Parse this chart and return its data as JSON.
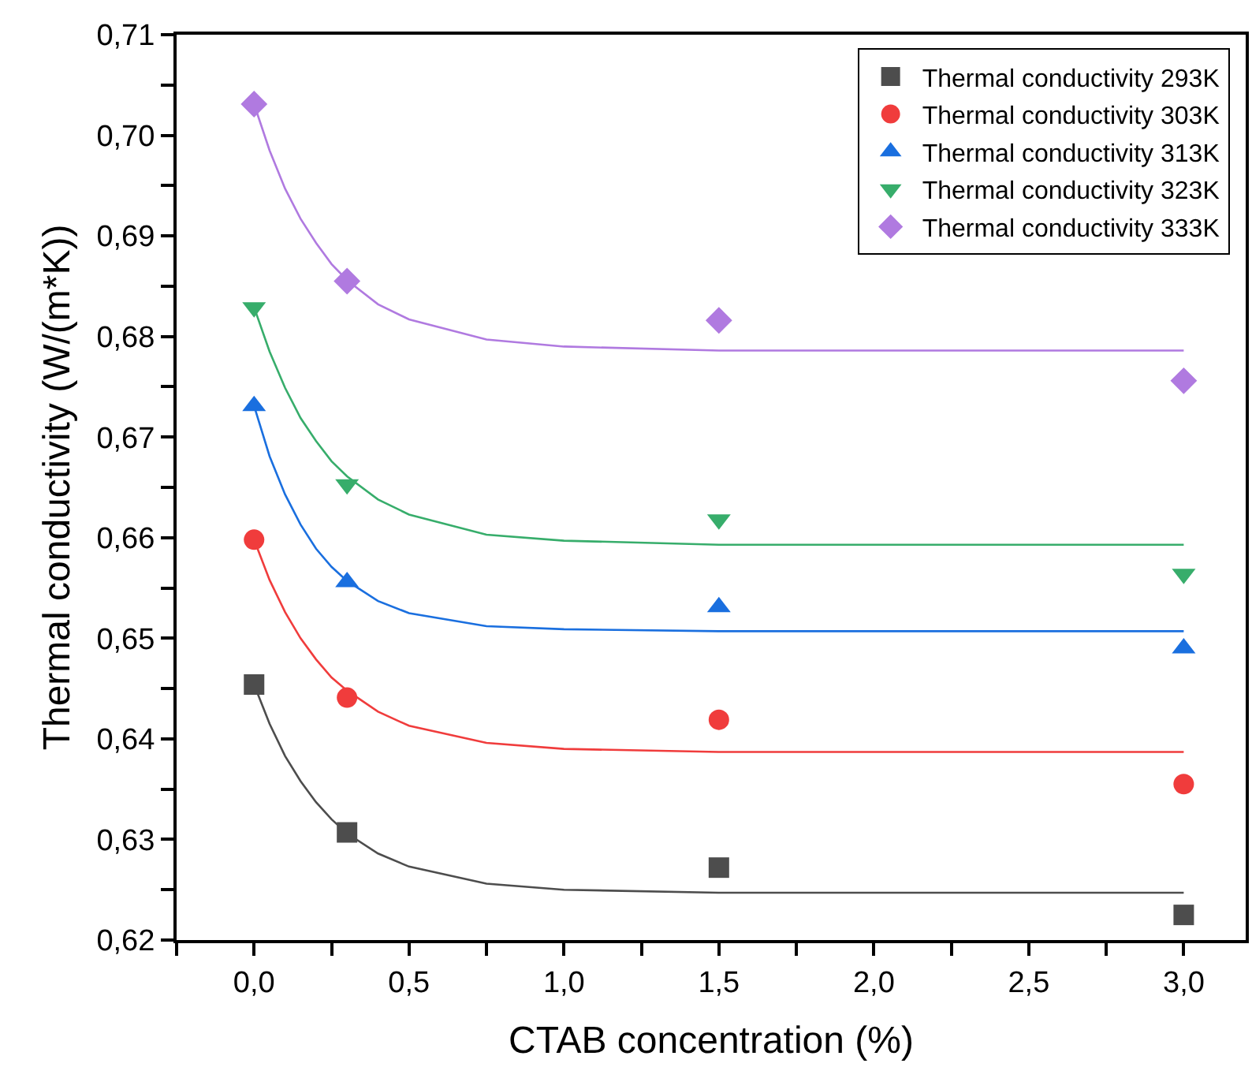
{
  "chart_data": {
    "type": "scatter",
    "xlabel": "CTAB concentration (%)",
    "ylabel": "Thermal conductivity (W/(m*K))",
    "x": [
      0,
      0.3,
      1.5,
      3.0
    ],
    "xlim": [
      -0.25,
      3.2
    ],
    "xticks": [
      {
        "value": -0.25,
        "label": null
      },
      {
        "value": 0,
        "label": "0,0"
      },
      {
        "value": 0.25,
        "label": null
      },
      {
        "value": 0.5,
        "label": "0,5"
      },
      {
        "value": 0.75,
        "label": null
      },
      {
        "value": 1,
        "label": "1,0"
      },
      {
        "value": 1.25,
        "label": null
      },
      {
        "value": 1.5,
        "label": "1,5"
      },
      {
        "value": 1.75,
        "label": null
      },
      {
        "value": 2,
        "label": "2,0"
      },
      {
        "value": 2.25,
        "label": null
      },
      {
        "value": 2.5,
        "label": "2,5"
      },
      {
        "value": 2.75,
        "label": null
      },
      {
        "value": 3,
        "label": "3,0"
      }
    ],
    "ylim": [
      0.62,
      0.71
    ],
    "yticks": [
      {
        "value": 0.62,
        "label": "0,62"
      },
      {
        "value": 0.625,
        "label": null
      },
      {
        "value": 0.63,
        "label": "0,63"
      },
      {
        "value": 0.635,
        "label": null
      },
      {
        "value": 0.64,
        "label": "0,64"
      },
      {
        "value": 0.645,
        "label": null
      },
      {
        "value": 0.65,
        "label": "0,65"
      },
      {
        "value": 0.655,
        "label": null
      },
      {
        "value": 0.66,
        "label": "0,66"
      },
      {
        "value": 0.665,
        "label": null
      },
      {
        "value": 0.67,
        "label": "0,67"
      },
      {
        "value": 0.675,
        "label": null
      },
      {
        "value": 0.68,
        "label": "0,68"
      },
      {
        "value": 0.685,
        "label": null
      },
      {
        "value": 0.69,
        "label": "0,69"
      },
      {
        "value": 0.695,
        "label": null
      },
      {
        "value": 0.7,
        "label": "0,70"
      },
      {
        "value": 0.705,
        "label": null
      },
      {
        "value": 0.71,
        "label": "0,71"
      }
    ],
    "grid": false,
    "legend": "top right",
    "series": [
      {
        "name": "Thermal conductivity 293K",
        "color": "#4d4d4d",
        "marker": "square",
        "values": [
          0.6454,
          0.6307,
          0.6272,
          0.6225
        ]
      },
      {
        "name": "Thermal conductivity 303K",
        "color": "#f03c3c",
        "marker": "circle",
        "values": [
          0.6598,
          0.6441,
          0.6419,
          0.6355
        ]
      },
      {
        "name": "Thermal conductivity 313K",
        "color": "#1a6fdf",
        "marker": "triangle",
        "values": [
          0.6731,
          0.6556,
          0.6531,
          0.649
        ]
      },
      {
        "name": "Thermal conductivity 323K",
        "color": "#37ad6b",
        "marker": "triangle-down",
        "values": [
          0.6829,
          0.6653,
          0.6618,
          0.6564
        ]
      },
      {
        "name": "Thermal conductivity 333K",
        "color": "#b07ae0",
        "marker": "diamond",
        "values": [
          0.7031,
          0.6855,
          0.6816,
          0.6756
        ]
      },
      {
        "type": "line",
        "color": "#4d4d4d",
        "marker": "none",
        "x": [
          0,
          0.05,
          0.1,
          0.15,
          0.2,
          0.25,
          0.3,
          0.4,
          0.5,
          0.75,
          1,
          1.5,
          2,
          3
        ],
        "values": [
          0.6454,
          0.6415,
          0.6383,
          0.6358,
          0.6337,
          0.632,
          0.6306,
          0.6286,
          0.6273,
          0.6256,
          0.625,
          0.6247,
          0.6247,
          0.6247
        ]
      },
      {
        "type": "line",
        "color": "#f03c3c",
        "marker": "none",
        "x": [
          0,
          0.05,
          0.1,
          0.15,
          0.2,
          0.25,
          0.3,
          0.4,
          0.5,
          0.75,
          1,
          1.5,
          2,
          3
        ],
        "values": [
          0.6598,
          0.6558,
          0.6526,
          0.65,
          0.6479,
          0.6461,
          0.6448,
          0.6427,
          0.6413,
          0.6396,
          0.639,
          0.6387,
          0.6387,
          0.6387
        ]
      },
      {
        "type": "line",
        "color": "#1a6fdf",
        "marker": "none",
        "x": [
          0,
          0.05,
          0.1,
          0.15,
          0.2,
          0.25,
          0.3,
          0.4,
          0.5,
          0.75,
          1,
          1.5,
          2,
          3
        ],
        "values": [
          0.6731,
          0.6681,
          0.6643,
          0.6613,
          0.6589,
          0.6571,
          0.6557,
          0.6537,
          0.6525,
          0.6512,
          0.6509,
          0.6507,
          0.6507,
          0.6507
        ]
      },
      {
        "type": "line",
        "color": "#37ad6b",
        "marker": "none",
        "x": [
          0,
          0.05,
          0.1,
          0.15,
          0.2,
          0.25,
          0.3,
          0.4,
          0.5,
          0.75,
          1,
          1.5,
          2,
          3
        ],
        "values": [
          0.6829,
          0.6785,
          0.6749,
          0.6719,
          0.6696,
          0.6676,
          0.6661,
          0.6638,
          0.6623,
          0.6603,
          0.6597,
          0.6593,
          0.6593,
          0.6593
        ]
      },
      {
        "type": "line",
        "color": "#b07ae0",
        "marker": "none",
        "x": [
          0,
          0.05,
          0.1,
          0.15,
          0.2,
          0.25,
          0.3,
          0.4,
          0.5,
          0.75,
          1,
          1.5,
          2,
          3
        ],
        "values": [
          0.7031,
          0.6985,
          0.6947,
          0.6917,
          0.6893,
          0.6872,
          0.6856,
          0.6832,
          0.6817,
          0.6797,
          0.679,
          0.6786,
          0.6786,
          0.6786
        ]
      }
    ]
  }
}
